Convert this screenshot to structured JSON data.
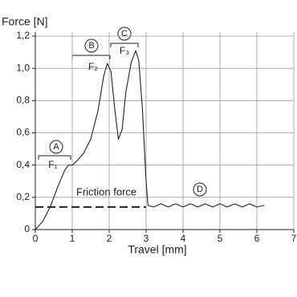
{
  "chart_data": {
    "type": "line",
    "y_label": "Force [N]",
    "x_label": "Travel [mm]",
    "xlim": [
      0,
      7
    ],
    "xticks": [
      0,
      1,
      2,
      3,
      4,
      5,
      6,
      7
    ],
    "ylim": [
      0,
      1.2
    ],
    "yticks": [
      0,
      {
        "value": 0.2,
        "label": "0,2"
      },
      {
        "value": 0.4,
        "label": "0,4"
      },
      {
        "value": 0.6,
        "label": "0,6"
      },
      {
        "value": 0.8,
        "label": "0,8"
      },
      {
        "value": 1.0,
        "label": "1,0"
      },
      {
        "value": 1.2,
        "label": "1,2"
      }
    ],
    "grid": true,
    "series": [
      {
        "color": "#222222",
        "x": [
          0,
          0.2,
          0.4,
          0.6,
          0.8,
          0.9,
          1.0,
          1.1,
          1.3,
          1.5,
          1.7,
          1.85,
          1.95,
          2.05,
          2.15,
          2.25,
          2.35,
          2.45,
          2.6,
          2.72,
          2.8,
          2.9,
          3.0,
          3.05,
          3.2,
          3.4,
          3.6,
          3.8,
          4.0,
          4.2,
          4.4,
          4.6,
          4.8,
          5.0,
          5.2,
          5.4,
          5.6,
          5.8,
          6.0,
          6.2
        ],
        "values": [
          0,
          0.05,
          0.14,
          0.26,
          0.37,
          0.4,
          0.4,
          0.42,
          0.47,
          0.56,
          0.74,
          0.95,
          1.03,
          0.98,
          0.75,
          0.56,
          0.62,
          0.85,
          1.04,
          1.11,
          1.05,
          0.75,
          0.3,
          0.15,
          0.14,
          0.16,
          0.14,
          0.16,
          0.14,
          0.16,
          0.14,
          0.16,
          0.14,
          0.16,
          0.14,
          0.16,
          0.14,
          0.16,
          0.14,
          0.15
        ]
      },
      {
        "name": "Friction force",
        "color": "#222222",
        "dashed": true,
        "x": [
          0,
          3
        ],
        "values": [
          0.14,
          0.14
        ]
      }
    ],
    "annotations": [
      "A",
      "F₁",
      "B",
      "F₂",
      "C",
      "F₃",
      "D"
    ]
  }
}
